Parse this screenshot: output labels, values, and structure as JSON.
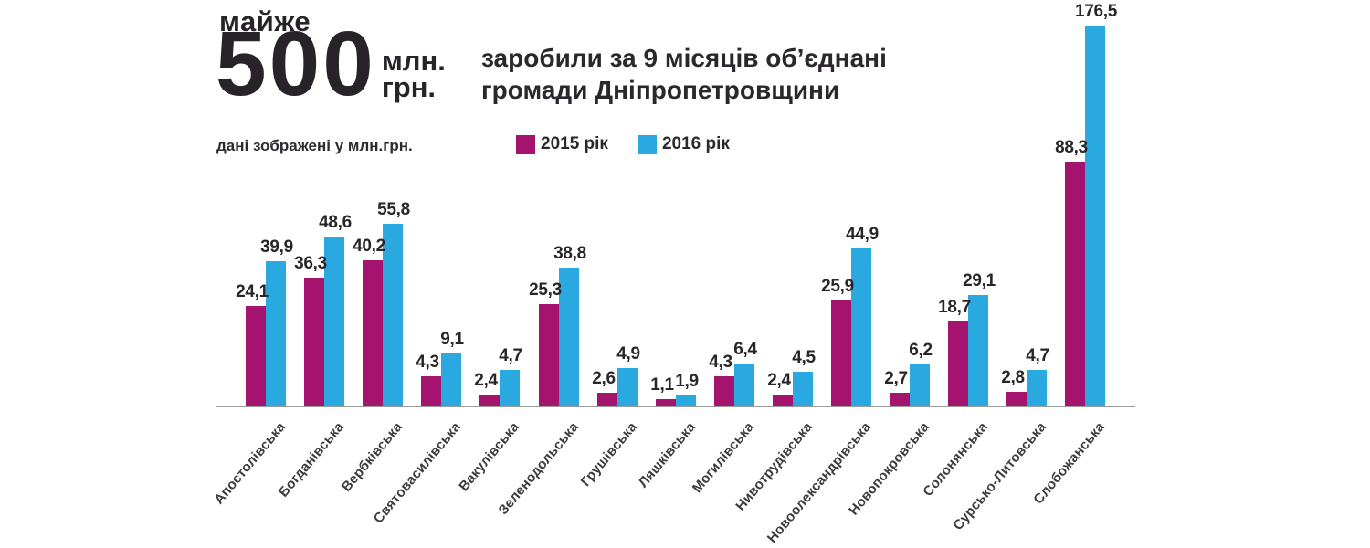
{
  "header": {
    "prefix": "майже",
    "big_number": "500",
    "unit_line1": "млн.",
    "unit_line2": "грн.",
    "subtitle_line1": "заробили за 9 місяців об’єднані",
    "subtitle_line2": "громади Дніпропетровщини",
    "note": "дані зображені у млн.грн."
  },
  "legend": {
    "items": [
      {
        "label": "2015 рік",
        "color": "#a4136d"
      },
      {
        "label": "2016 рік",
        "color": "#29a9e0"
      }
    ]
  },
  "chart_data": {
    "type": "bar",
    "title": "майже 500 млн. грн. заробили за 9 місяців об’єднані громади Дніпропетровщини",
    "unit": "млн.грн.",
    "note": "дані зображені у млн.грн.",
    "legend_position": "top",
    "grid": false,
    "value_labels": true,
    "decimal_separator": ",",
    "categories": [
      "Апостолівська",
      "Богданівська",
      "Вербківська",
      "Святовасилівська",
      "Вакулівська",
      "Зеленодольська",
      "Грушівська",
      "Ляшківська",
      "Могилівська",
      "Нивотрудівська",
      "Новоолександрівська",
      "Новопокровська",
      "Солонянська",
      "Сурсько-Литовська",
      "Слобожанська"
    ],
    "series": [
      {
        "name": "2015 рік",
        "color": "#a4136d",
        "values": [
          24.1,
          36.3,
          40.2,
          4.3,
          2.4,
          25.3,
          2.6,
          1.1,
          4.3,
          2.4,
          25.9,
          2.7,
          18.7,
          2.8,
          88.3
        ]
      },
      {
        "name": "2016 рік",
        "color": "#29a9e0",
        "values": [
          39.9,
          48.6,
          55.8,
          9.1,
          4.7,
          38.8,
          4.9,
          1.9,
          6.4,
          4.5,
          44.9,
          6.2,
          29.1,
          4.7,
          176.5
        ]
      }
    ]
  }
}
